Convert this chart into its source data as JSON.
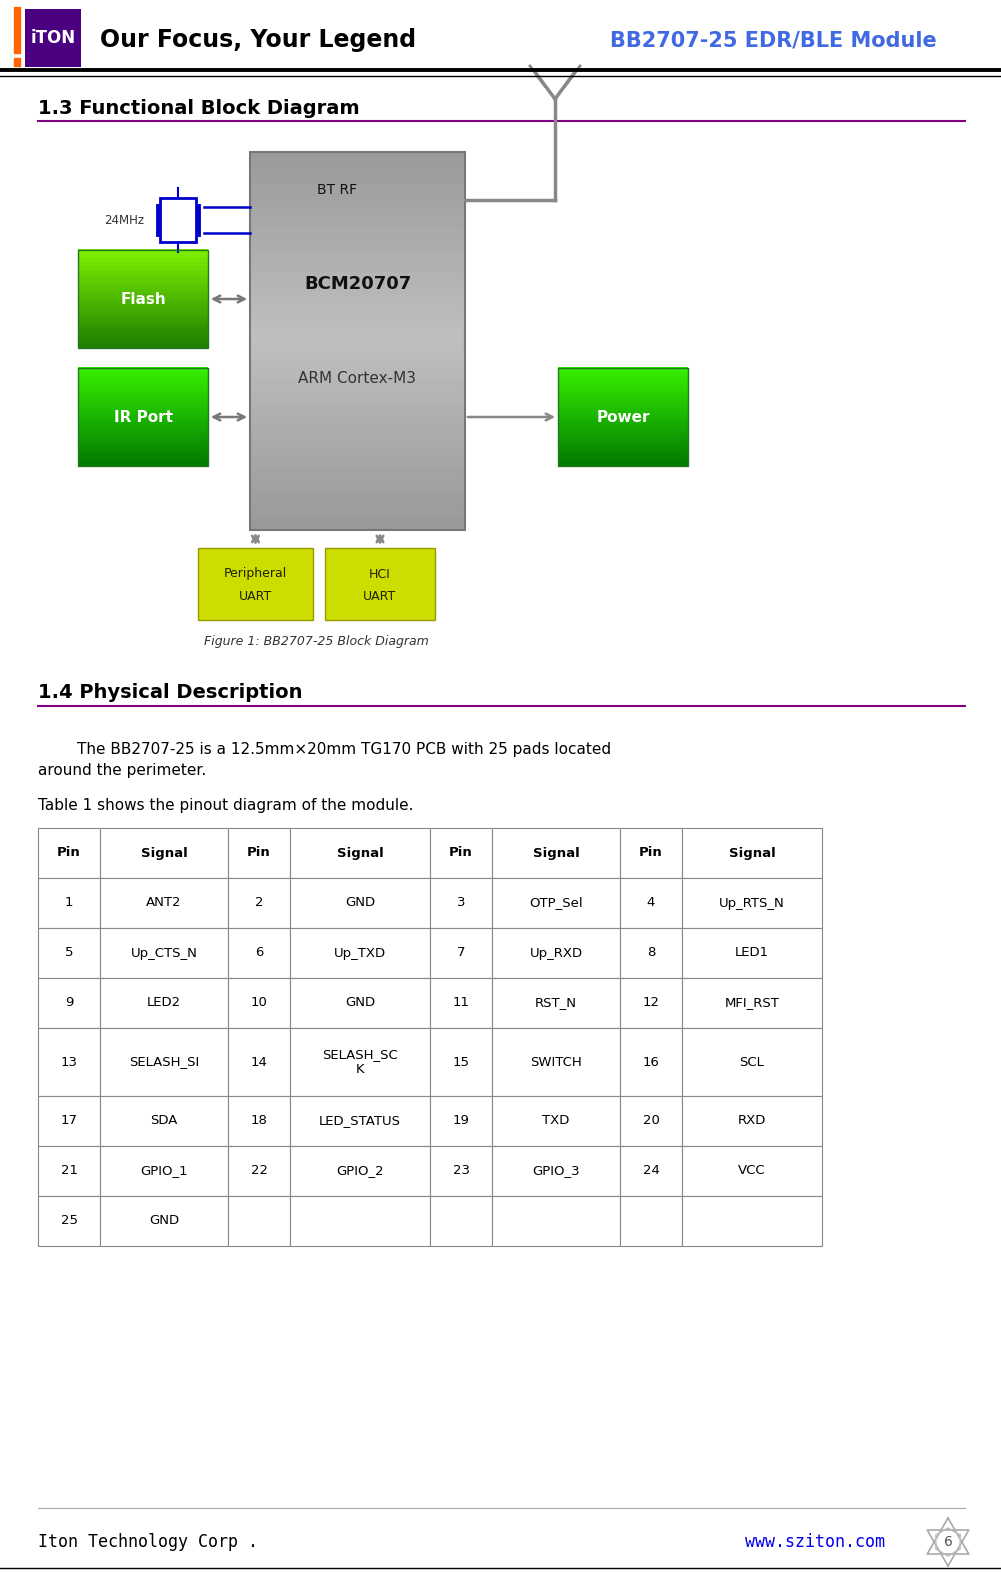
{
  "header_title": "Our Focus, Your Legend",
  "header_subtitle": "BB2707-25 EDR/BLE Module",
  "header_title_color": "#000000",
  "header_subtitle_color": "#4169E1",
  "section1_title": "1.3 Functional Block Diagram",
  "section2_title": "1.4 Physical Description",
  "body_text1": "        The BB2707-25 is a 12.5mm×20mm TG170 PCB with 25 pads located\naround the perimeter.",
  "body_text2": "Table 1 shows the pinout diagram of the module.",
  "figure_caption": "Figure 1: BB2707-25 Block Diagram",
  "footer_left": "Iton Technology Corp .",
  "footer_right": "www.sziton.com",
  "footer_page": "6",
  "table_headers": [
    "Pin",
    "Signal",
    "Pin",
    "Signal",
    "Pin",
    "Signal",
    "Pin",
    "Signal"
  ],
  "table_rows": [
    [
      "1",
      "ANT2",
      "2",
      "GND",
      "3",
      "OTP_Sel",
      "4",
      "Up_RTS_N"
    ],
    [
      "5",
      "Up_CTS_N",
      "6",
      "Up_TXD",
      "7",
      "Up_RXD",
      "8",
      "LED1"
    ],
    [
      "9",
      "LED2",
      "10",
      "GND",
      "11",
      "RST_N",
      "12",
      "MFI_RST"
    ],
    [
      "13",
      "SELASH_SI",
      "14",
      "SELASH_SC\nK",
      "15",
      "SWITCH",
      "16",
      "SCL"
    ],
    [
      "17",
      "SDA",
      "18",
      "LED_STATUS",
      "19",
      "TXD",
      "20",
      "RXD"
    ],
    [
      "21",
      "GPIO_1",
      "22",
      "GPIO_2",
      "23",
      "GPIO_3",
      "24",
      "VCC"
    ],
    [
      "25",
      "GND",
      "",
      "",
      "",
      "",
      "",
      ""
    ]
  ],
  "bg_color": "#ffffff",
  "logo_orange": "#FF6600",
  "logo_purple": "#4B0082"
}
